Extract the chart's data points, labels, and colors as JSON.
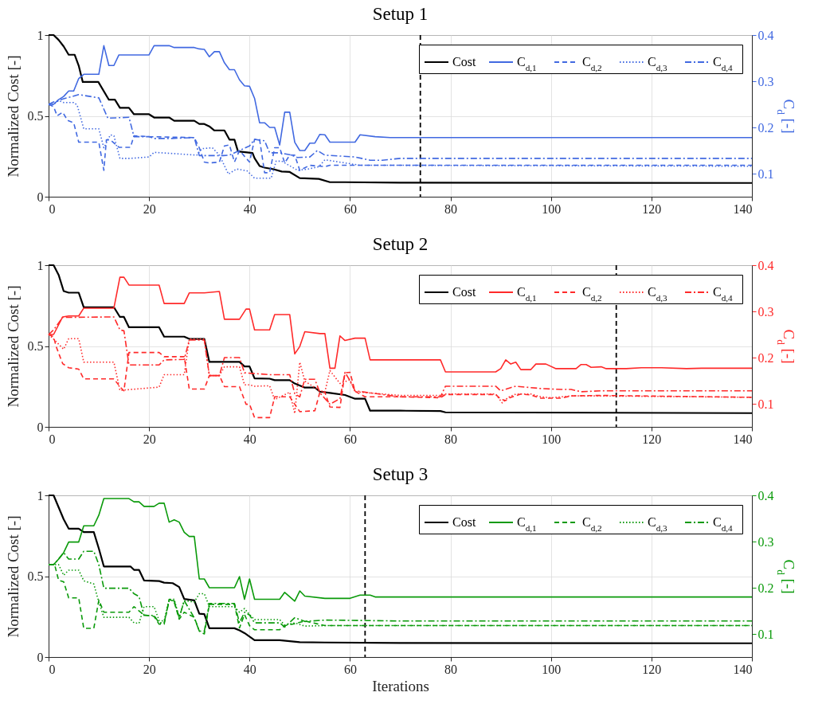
{
  "chart_data": [
    {
      "type": "line",
      "title": "Setup 1",
      "ylabel": "Normalized Cost [-]",
      "y2label": "C$_{d}$ [-]",
      "xlim": [
        0,
        140
      ],
      "xticks": [
        0,
        20,
        40,
        60,
        80,
        100,
        120,
        140
      ],
      "ylim": [
        0,
        1
      ],
      "yticks": [
        0,
        0.5,
        1
      ],
      "y2lim": [
        0.05,
        0.4
      ],
      "y2ticks": [
        0.1,
        0.2,
        0.3,
        0.4
      ],
      "grid": true,
      "legend": "top right",
      "ref_lines": [
        {
          "axis": "x",
          "value": 74,
          "color": "#000000",
          "line_style": "dashed"
        }
      ],
      "series": [
        {
          "name": "Cost",
          "color": "#000000",
          "line_style": "solid",
          "x": [
            0,
            1,
            2,
            3,
            4,
            5.2,
            6,
            6.8,
            9.9,
            12,
            13.2,
            14.2,
            16,
            17,
            20,
            21,
            24,
            25,
            29,
            30,
            31,
            32,
            33,
            35,
            36,
            37,
            37.7,
            40.6,
            41,
            42,
            43,
            44.8,
            46.4,
            48,
            50,
            53.8,
            56,
            59,
            70,
            140
          ],
          "values": [
            1,
            1,
            0.97,
            0.93,
            0.878,
            0.878,
            0.81,
            0.71,
            0.71,
            0.6,
            0.6,
            0.55,
            0.55,
            0.51,
            0.51,
            0.49,
            0.49,
            0.47,
            0.47,
            0.45,
            0.45,
            0.435,
            0.41,
            0.41,
            0.353,
            0.353,
            0.28,
            0.27,
            0.238,
            0.19,
            0.18,
            0.17,
            0.156,
            0.153,
            0.115,
            0.11,
            0.09,
            0.09,
            0.087,
            0.085
          ]
        },
        {
          "name": "C$_{d,1}$",
          "color": "#4169e1",
          "line_style": "solid",
          "axis": "y2",
          "x": [
            0,
            1,
            2,
            3,
            4,
            5,
            6,
            7,
            10,
            11,
            12,
            13,
            14,
            17,
            20,
            21,
            24,
            25,
            29,
            30,
            31,
            32,
            33,
            34,
            35,
            36,
            37,
            38,
            39,
            40,
            41,
            42,
            43,
            44,
            45,
            46,
            47,
            48,
            49,
            50,
            51,
            52,
            53,
            54,
            55,
            56,
            61,
            62,
            65,
            68,
            140
          ],
          "values": [
            0.25,
            0.25,
            0.26,
            0.267,
            0.279,
            0.279,
            0.306,
            0.315,
            0.315,
            0.377,
            0.334,
            0.334,
            0.357,
            0.357,
            0.357,
            0.377,
            0.377,
            0.373,
            0.373,
            0.37,
            0.369,
            0.353,
            0.364,
            0.364,
            0.34,
            0.325,
            0.325,
            0.303,
            0.29,
            0.289,
            0.263,
            0.21,
            0.21,
            0.2,
            0.2,
            0.162,
            0.233,
            0.233,
            0.168,
            0.15,
            0.15,
            0.166,
            0.166,
            0.185,
            0.184,
            0.168,
            0.168,
            0.184,
            0.18,
            0.178,
            0.178
          ]
        },
        {
          "name": "C$_{d,2}$",
          "color": "#4169e1",
          "line_style": "dashed",
          "axis": "y2",
          "x": [
            0,
            1,
            1.7,
            2.8,
            3.8,
            5,
            6,
            10,
            11,
            11.5,
            12.3,
            14,
            16.3,
            17,
            20,
            29,
            30,
            31,
            32,
            34,
            35,
            36,
            37,
            38,
            40,
            41,
            42,
            43,
            44,
            45,
            46,
            47,
            48,
            49,
            50,
            52,
            55,
            56,
            62,
            70,
            140
          ],
          "values": [
            0.25,
            0.245,
            0.225,
            0.233,
            0.215,
            0.21,
            0.168,
            0.168,
            0.107,
            0.173,
            0.173,
            0.157,
            0.157,
            0.182,
            0.18,
            0.178,
            0.156,
            0.125,
            0.123,
            0.125,
            0.16,
            0.162,
            0.125,
            0.15,
            0.125,
            0.174,
            0.174,
            0.102,
            0.102,
            0.156,
            0.156,
            0.123,
            0.14,
            0.14,
            0.107,
            0.118,
            0.115,
            0.118,
            0.118,
            0.118,
            0.118
          ]
        },
        {
          "name": "C$_{d,3}$",
          "color": "#4169e1",
          "line_style": "dotted",
          "axis": "y2",
          "x": [
            0,
            1,
            2,
            3,
            5,
            5.7,
            7,
            10,
            11,
            12.3,
            13,
            14.2,
            16.3,
            20,
            21,
            24,
            29.5,
            30.5,
            32.6,
            34,
            35.8,
            37.4,
            39.5,
            41,
            44.3,
            45.3,
            46.4,
            47.5,
            49.6,
            51.7,
            53.8,
            55,
            62,
            70,
            140
          ],
          "values": [
            0.25,
            0.25,
            0.258,
            0.254,
            0.254,
            0.248,
            0.197,
            0.197,
            0.156,
            0.184,
            0.182,
            0.133,
            0.133,
            0.136,
            0.146,
            0.144,
            0.14,
            0.154,
            0.156,
            0.14,
            0.099,
            0.11,
            0.106,
            0.09,
            0.09,
            0.127,
            0.127,
            0.12,
            0.107,
            0.11,
            0.115,
            0.13,
            0.118,
            0.118,
            0.116
          ]
        },
        {
          "name": "C$_{d,4}$",
          "color": "#4169e1",
          "line_style": "dashdot",
          "axis": "y2",
          "x": [
            0,
            1,
            3,
            6,
            10,
            11.8,
            16,
            17,
            20,
            21,
            24,
            29,
            30,
            34.8,
            36,
            38,
            40,
            41,
            43,
            44,
            46,
            48,
            49.5,
            52,
            53.5,
            55,
            61,
            64,
            66.4,
            70,
            140
          ],
          "values": [
            0.25,
            0.255,
            0.262,
            0.271,
            0.264,
            0.22,
            0.222,
            0.18,
            0.18,
            0.176,
            0.176,
            0.178,
            0.139,
            0.139,
            0.14,
            0.15,
            0.16,
            0.174,
            0.171,
            0.145,
            0.145,
            0.141,
            0.135,
            0.136,
            0.15,
            0.14,
            0.136,
            0.129,
            0.129,
            0.133,
            0.133
          ]
        }
      ]
    },
    {
      "type": "line",
      "title": "Setup 2",
      "ylabel": "Normalized Cost [-]",
      "y2label": "C$_{d}$ [-]",
      "xlim": [
        0,
        140
      ],
      "xticks": [
        0,
        20,
        40,
        60,
        80,
        100,
        120,
        140
      ],
      "ylim": [
        0,
        1
      ],
      "yticks": [
        0,
        0.5,
        1
      ],
      "y2lim": [
        0.05,
        0.4
      ],
      "y2ticks": [
        0.1,
        0.2,
        0.3,
        0.4
      ],
      "grid": true,
      "legend": "top right",
      "ref_lines": [
        {
          "axis": "x",
          "value": 113,
          "color": "#000000",
          "line_style": "dashed"
        }
      ],
      "series": [
        {
          "name": "Cost",
          "color": "#000000",
          "line_style": "solid",
          "x": [
            0,
            1,
            2,
            3,
            4,
            6,
            7,
            13,
            14.2,
            15,
            16,
            22,
            23,
            27,
            28,
            31,
            32,
            38,
            39,
            40,
            41,
            44,
            45,
            48,
            49,
            51,
            53,
            54,
            56,
            59,
            61,
            63,
            64,
            70,
            78,
            79,
            140
          ],
          "values": [
            1,
            1,
            0.94,
            0.84,
            0.83,
            0.83,
            0.74,
            0.74,
            0.68,
            0.68,
            0.616,
            0.616,
            0.558,
            0.558,
            0.544,
            0.544,
            0.402,
            0.402,
            0.374,
            0.374,
            0.3,
            0.298,
            0.289,
            0.289,
            0.268,
            0.243,
            0.243,
            0.218,
            0.21,
            0.197,
            0.174,
            0.174,
            0.1,
            0.1,
            0.098,
            0.09,
            0.085
          ]
        },
        {
          "name": "C$_{d,1}$",
          "color": "#ff2a2a",
          "line_style": "solid",
          "axis": "y2",
          "x": [
            0,
            1,
            2.8,
            4,
            6,
            7,
            13,
            14.2,
            15,
            16,
            22,
            23,
            27,
            28,
            31,
            34,
            35,
            38,
            39.3,
            40,
            41,
            44,
            45,
            48,
            49,
            50,
            51,
            54,
            55,
            56,
            57,
            58,
            59,
            61,
            63,
            64,
            78,
            79,
            89,
            90,
            91,
            92,
            93,
            94,
            96,
            97,
            99,
            101,
            105,
            106,
            107,
            108,
            110,
            111,
            115,
            118,
            122,
            127,
            130,
            140
          ],
          "values": [
            0.25,
            0.25,
            0.288,
            0.29,
            0.29,
            0.307,
            0.307,
            0.374,
            0.374,
            0.357,
            0.357,
            0.317,
            0.317,
            0.34,
            0.34,
            0.343,
            0.283,
            0.283,
            0.305,
            0.305,
            0.26,
            0.26,
            0.293,
            0.293,
            0.208,
            0.224,
            0.256,
            0.252,
            0.252,
            0.177,
            0.177,
            0.247,
            0.237,
            0.242,
            0.242,
            0.195,
            0.195,
            0.169,
            0.169,
            0.176,
            0.195,
            0.186,
            0.19,
            0.174,
            0.174,
            0.186,
            0.186,
            0.176,
            0.176,
            0.185,
            0.185,
            0.179,
            0.18,
            0.176,
            0.176,
            0.178,
            0.178,
            0.176,
            0.177,
            0.177
          ]
        },
        {
          "name": "C$_{d,2}$",
          "color": "#ff2a2a",
          "line_style": "dashed",
          "axis": "y2",
          "x": [
            0,
            1,
            1.5,
            2.8,
            4,
            6,
            7,
            13,
            14.2,
            15,
            16,
            22,
            23,
            27,
            28,
            31,
            32,
            34,
            35,
            38,
            39.3,
            40,
            41,
            44,
            45,
            48,
            50,
            53,
            54,
            55,
            56,
            58,
            59,
            60,
            61,
            63,
            70,
            78,
            79,
            89,
            90,
            91,
            92,
            94,
            96,
            98,
            102,
            104,
            110,
            140
          ],
          "values": [
            0.25,
            0.245,
            0.224,
            0.187,
            0.178,
            0.175,
            0.154,
            0.154,
            0.137,
            0.128,
            0.211,
            0.211,
            0.202,
            0.202,
            0.132,
            0.132,
            0.161,
            0.161,
            0.137,
            0.137,
            0.099,
            0.099,
            0.07,
            0.07,
            0.115,
            0.115,
            0.083,
            0.085,
            0.125,
            0.125,
            0.093,
            0.092,
            0.167,
            0.168,
            0.127,
            0.115,
            0.115,
            0.113,
            0.12,
            0.12,
            0.11,
            0.107,
            0.114,
            0.121,
            0.119,
            0.112,
            0.112,
            0.117,
            0.118,
            0.114
          ]
        },
        {
          "name": "C$_{d,3}$",
          "color": "#ff2a2a",
          "line_style": "dotted",
          "axis": "y2",
          "x": [
            0,
            1,
            3,
            4,
            6,
            7,
            13,
            14.2,
            22,
            23,
            27,
            28,
            31,
            32,
            34,
            35,
            38,
            39,
            40,
            41,
            44,
            45,
            48,
            49,
            50,
            51,
            54,
            55,
            56,
            58,
            60,
            61,
            70,
            78,
            79,
            89,
            90.3,
            91.5,
            93,
            96,
            98,
            100,
            104,
            110,
            140
          ],
          "values": [
            0.25,
            0.24,
            0.218,
            0.241,
            0.241,
            0.19,
            0.19,
            0.129,
            0.136,
            0.163,
            0.163,
            0.24,
            0.24,
            0.161,
            0.161,
            0.18,
            0.18,
            0.141,
            0.141,
            0.138,
            0.139,
            0.109,
            0.125,
            0.079,
            0.19,
            0.149,
            0.128,
            0.126,
            0.172,
            0.144,
            0.152,
            0.126,
            0.118,
            0.118,
            0.121,
            0.121,
            0.102,
            0.114,
            0.121,
            0.121,
            0.115,
            0.113,
            0.117,
            0.117,
            0.114
          ]
        },
        {
          "name": "C$_{d,4}$",
          "color": "#ff2a2a",
          "line_style": "dashdot",
          "axis": "y2",
          "x": [
            0,
            1,
            2.8,
            13,
            14.2,
            15,
            16,
            22,
            23,
            27,
            28,
            31,
            32,
            34,
            35,
            38,
            39,
            44,
            48,
            49,
            50,
            51,
            53,
            54,
            56,
            58,
            59,
            60,
            61,
            70,
            78,
            79,
            89,
            90,
            92,
            93,
            98,
            102,
            104,
            106,
            110,
            140
          ],
          "values": [
            0.25,
            0.26,
            0.287,
            0.288,
            0.26,
            0.258,
            0.184,
            0.184,
            0.195,
            0.196,
            0.238,
            0.238,
            0.161,
            0.161,
            0.2,
            0.2,
            0.167,
            0.163,
            0.163,
            0.122,
            0.115,
            0.153,
            0.153,
            0.124,
            0.099,
            0.111,
            0.168,
            0.15,
            0.128,
            0.115,
            0.115,
            0.138,
            0.138,
            0.128,
            0.135,
            0.138,
            0.133,
            0.131,
            0.131,
            0.126,
            0.128,
            0.128
          ]
        }
      ]
    },
    {
      "type": "line",
      "title": "Setup 3",
      "xlabel": "Iterations",
      "ylabel": "Normalized Cost [-]",
      "y2label": "C$_{d}$ [-]",
      "xlim": [
        0,
        140
      ],
      "xticks": [
        0,
        20,
        40,
        60,
        80,
        100,
        120,
        140
      ],
      "ylim": [
        0,
        1
      ],
      "yticks": [
        0,
        0.5,
        1
      ],
      "y2lim": [
        0.05,
        0.4
      ],
      "y2ticks": [
        0.1,
        0.2,
        0.3,
        0.4
      ],
      "grid": true,
      "legend": "top right",
      "ref_lines": [
        {
          "axis": "x",
          "value": 63,
          "color": "#000000",
          "line_style": "dashed"
        }
      ],
      "series": [
        {
          "name": "Cost",
          "color": "#000000",
          "line_style": "solid",
          "x": [
            0,
            1,
            2,
            3,
            4,
            6,
            7,
            9,
            10,
            11,
            16.3,
            17,
            18,
            19,
            22,
            23,
            24.7,
            26,
            27,
            29,
            30,
            31,
            32,
            37,
            38,
            39,
            41,
            46,
            50,
            55,
            70,
            140
          ],
          "values": [
            1,
            1,
            0.926,
            0.852,
            0.794,
            0.794,
            0.773,
            0.773,
            0.671,
            0.56,
            0.56,
            0.539,
            0.539,
            0.474,
            0.47,
            0.46,
            0.457,
            0.433,
            0.359,
            0.35,
            0.268,
            0.265,
            0.178,
            0.178,
            0.165,
            0.148,
            0.104,
            0.104,
            0.092,
            0.09,
            0.087,
            0.085
          ]
        },
        {
          "name": "C$_{d,1}$",
          "color": "#0a9a0a",
          "line_style": "solid",
          "axis": "y2",
          "x": [
            0,
            1,
            2,
            3,
            4,
            6,
            7,
            9,
            10,
            11,
            16,
            17,
            18,
            19,
            21,
            22,
            23,
            24,
            25,
            26,
            27,
            28,
            29,
            30,
            31,
            32,
            37,
            38,
            39,
            40,
            41,
            46,
            47,
            49,
            50,
            51,
            55,
            60,
            62,
            64,
            65,
            140
          ],
          "values": [
            0.25,
            0.25,
            0.262,
            0.276,
            0.299,
            0.299,
            0.334,
            0.334,
            0.357,
            0.393,
            0.393,
            0.386,
            0.386,
            0.376,
            0.376,
            0.383,
            0.383,
            0.342,
            0.347,
            0.342,
            0.32,
            0.311,
            0.311,
            0.219,
            0.219,
            0.2,
            0.2,
            0.224,
            0.175,
            0.219,
            0.175,
            0.175,
            0.19,
            0.171,
            0.193,
            0.182,
            0.177,
            0.177,
            0.184,
            0.184,
            0.18,
            0.18
          ]
        },
        {
          "name": "C$_{d,2}$",
          "color": "#0a9a0a",
          "line_style": "dashed",
          "axis": "y2",
          "x": [
            0,
            1.2,
            2,
            3,
            4,
            6,
            7,
            9,
            10,
            11,
            16,
            17,
            19,
            21,
            22,
            23,
            24,
            25,
            26,
            27,
            29,
            30,
            31,
            32,
            37,
            38,
            39,
            40,
            41,
            46,
            47,
            49,
            51,
            55,
            140
          ],
          "values": [
            0.25,
            0.25,
            0.216,
            0.213,
            0.178,
            0.178,
            0.112,
            0.112,
            0.173,
            0.147,
            0.147,
            0.159,
            0.141,
            0.138,
            0.121,
            0.121,
            0.175,
            0.169,
            0.132,
            0.147,
            0.136,
            0.106,
            0.1,
            0.164,
            0.164,
            0.113,
            0.142,
            0.118,
            0.109,
            0.109,
            0.118,
            0.122,
            0.128,
            0.118,
            0.118
          ]
        },
        {
          "name": "C$_{d,3}$",
          "color": "#0a9a0a",
          "line_style": "dotted",
          "axis": "y2",
          "x": [
            0,
            2,
            3,
            4,
            6,
            7,
            9,
            10,
            11,
            16,
            17,
            18,
            19,
            21,
            22,
            23,
            24,
            25,
            26,
            27,
            29,
            30,
            31,
            32,
            37,
            38,
            39,
            40,
            41,
            46,
            47,
            49,
            51,
            55,
            140
          ],
          "values": [
            0.25,
            0.25,
            0.227,
            0.238,
            0.238,
            0.215,
            0.208,
            0.169,
            0.136,
            0.136,
            0.124,
            0.123,
            0.159,
            0.159,
            0.129,
            0.128,
            0.175,
            0.175,
            0.135,
            0.172,
            0.169,
            0.187,
            0.187,
            0.159,
            0.159,
            0.147,
            0.155,
            0.142,
            0.131,
            0.131,
            0.119,
            0.124,
            0.117,
            0.118,
            0.118
          ]
        },
        {
          "name": "C$_{d,4}$",
          "color": "#0a9a0a",
          "line_style": "dashdot",
          "axis": "y2",
          "x": [
            0,
            1,
            2,
            3,
            4,
            6,
            7,
            9,
            10,
            11,
            16,
            17,
            18,
            19,
            21,
            22,
            23,
            24,
            25,
            26,
            27,
            29,
            30,
            31,
            32,
            37,
            38,
            39,
            40,
            41,
            46,
            47,
            49,
            51,
            55,
            70,
            140
          ],
          "values": [
            0.25,
            0.25,
            0.262,
            0.276,
            0.262,
            0.262,
            0.279,
            0.279,
            0.25,
            0.199,
            0.199,
            0.187,
            0.181,
            0.14,
            0.14,
            0.124,
            0.124,
            0.172,
            0.172,
            0.135,
            0.172,
            0.135,
            0.106,
            0.106,
            0.166,
            0.166,
            0.124,
            0.147,
            0.141,
            0.124,
            0.124,
            0.115,
            0.135,
            0.127,
            0.13,
            0.128,
            0.128
          ]
        }
      ]
    }
  ]
}
